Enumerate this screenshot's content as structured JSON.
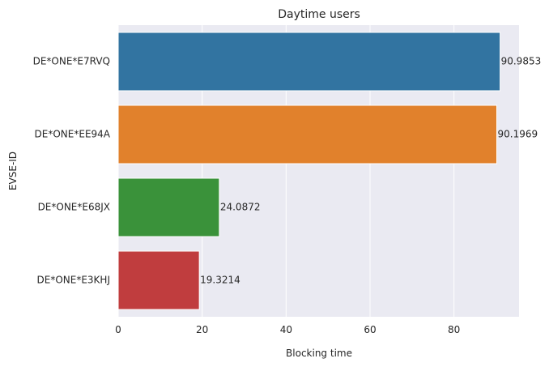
{
  "chart_data": {
    "type": "bar",
    "orientation": "horizontal",
    "title": "Daytime users",
    "xlabel": "Blocking time",
    "ylabel": "EVSE-ID",
    "categories": [
      "DE*ONE*E7RVQ",
      "DE*ONE*EE94A",
      "DE*ONE*E68JX",
      "DE*ONE*E3KHJ"
    ],
    "values": [
      90.9853,
      90.1969,
      24.0872,
      19.3214
    ],
    "data_labels": [
      "90.9853",
      "90.1969",
      "24.0872",
      "19.3214"
    ],
    "bar_colors": [
      "#3274a1",
      "#e1812c",
      "#3a923a",
      "#c03d3e"
    ],
    "xlim": [
      0,
      95.5
    ],
    "xticks": [
      0,
      20,
      40,
      60,
      80
    ],
    "xtick_labels": [
      "0",
      "20",
      "40",
      "60",
      "80"
    ],
    "grid": true,
    "grid_color": "#ffffff",
    "background": "#eaeaf2"
  }
}
